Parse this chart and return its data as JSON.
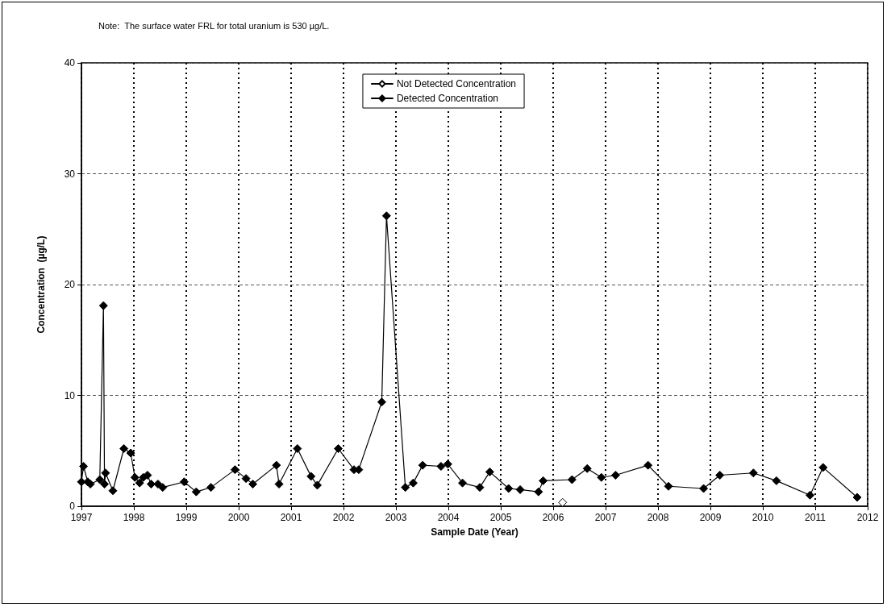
{
  "chart_data": {
    "type": "line",
    "xlabel": "Sample Date (Year)",
    "ylabel": "Concentration  (µg/L)",
    "annotations": [
      "Note:  The surface water FRL for total uranium is 530 µg/L."
    ],
    "xlim": [
      1997,
      2012
    ],
    "xticks": [
      1997,
      1998,
      1999,
      2000,
      2001,
      2002,
      2003,
      2004,
      2005,
      2006,
      2007,
      2008,
      2009,
      2010,
      2011,
      2012
    ],
    "ylim": [
      0,
      40
    ],
    "yticks": [
      0,
      10,
      20,
      30,
      40
    ],
    "grid": true,
    "legend": "top",
    "marker": "diamond",
    "series": [
      {
        "name": "Not Detected Concentration",
        "color": "#000000",
        "colors": [
          "#ffffff"
        ],
        "x": [
          2006.18
        ],
        "values": [
          0.34
        ]
      },
      {
        "name": "Detected Concentration",
        "color": "#000000",
        "x": [
          1997.0,
          1997.04,
          1997.12,
          1997.17,
          1997.35,
          1997.42,
          1997.44,
          1997.46,
          1997.6,
          1997.81,
          1997.94,
          1998.02,
          1998.11,
          1998.18,
          1998.26,
          1998.33,
          1998.46,
          1998.55,
          1998.96,
          1999.19,
          1999.47,
          1999.93,
          2000.14,
          2000.27,
          2000.72,
          2000.77,
          2001.12,
          2001.38,
          2001.5,
          2001.9,
          2002.2,
          2002.29,
          2002.73,
          2002.82,
          2003.18,
          2003.33,
          2003.51,
          2003.86,
          2003.99,
          2004.27,
          2004.6,
          2004.79,
          2005.15,
          2005.37,
          2005.72,
          2005.81,
          2006.18,
          2006.36,
          2006.65,
          2006.92,
          2007.19,
          2007.81,
          2008.2,
          2008.87,
          2009.18,
          2009.82,
          2010.26,
          2010.9,
          2011.15,
          2011.8
        ],
        "values": [
          2.2,
          3.6,
          2.2,
          2.0,
          2.4,
          18.1,
          2.0,
          3.0,
          1.4,
          5.2,
          4.8,
          2.6,
          2.1,
          2.6,
          2.8,
          2.0,
          2.0,
          1.7,
          2.2,
          1.3,
          1.7,
          3.3,
          2.5,
          2.0,
          3.7,
          2.0,
          5.2,
          2.7,
          1.9,
          5.2,
          3.3,
          3.3,
          9.4,
          26.2,
          1.7,
          2.1,
          3.7,
          3.6,
          3.8,
          2.1,
          1.7,
          3.1,
          1.6,
          1.5,
          1.3,
          2.3,
          null,
          2.4,
          3.4,
          2.6,
          2.8,
          3.7,
          1.8,
          1.6,
          2.8,
          3.0,
          2.3,
          1.0,
          3.5,
          0.8
        ]
      }
    ]
  }
}
